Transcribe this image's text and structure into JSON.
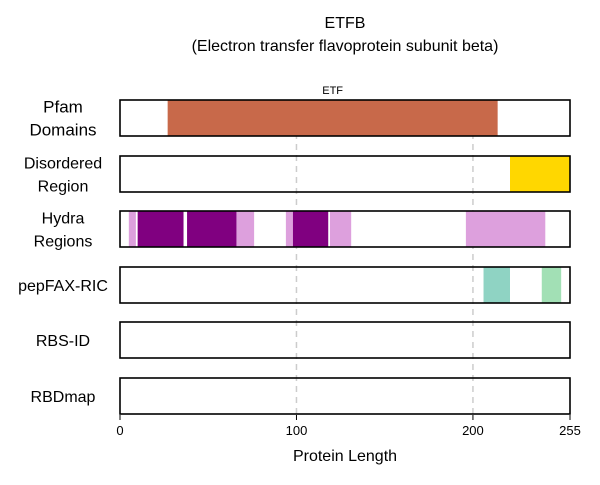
{
  "chart_data": {
    "type": "bar",
    "title": "ETFB",
    "subtitle": "(Electron transfer flavoprotein subunit beta)",
    "xlabel": "Protein Length",
    "xlim": [
      0,
      255
    ],
    "xticks": [
      0,
      100,
      200,
      255
    ],
    "grid_lines_at": [
      100,
      200
    ],
    "tracks": [
      {
        "label_lines": [
          "Pfam",
          "Domains"
        ],
        "segments": [
          {
            "start": 27,
            "end": 214,
            "color": "#c8694a",
            "label": "ETF"
          }
        ]
      },
      {
        "label_lines": [
          "Disordered",
          "Region"
        ],
        "segments": [
          {
            "start": 221,
            "end": 255,
            "color": "#ffd700"
          }
        ]
      },
      {
        "label_lines": [
          "Hydra",
          "Regions"
        ],
        "segments": [
          {
            "start": 5,
            "end": 9,
            "color": "#dda0dd"
          },
          {
            "start": 10,
            "end": 36,
            "color": "#800080"
          },
          {
            "start": 38,
            "end": 66,
            "color": "#800080"
          },
          {
            "start": 66,
            "end": 76,
            "color": "#dda0dd"
          },
          {
            "start": 94,
            "end": 98,
            "color": "#dda0dd"
          },
          {
            "start": 98,
            "end": 118,
            "color": "#800080"
          },
          {
            "start": 119,
            "end": 131,
            "color": "#dda0dd"
          },
          {
            "start": 196,
            "end": 241,
            "color": "#dda0dd"
          }
        ]
      },
      {
        "label_lines": [
          "pepFAX-RIC"
        ],
        "segments": [
          {
            "start": 206,
            "end": 221,
            "color": "#8fd3c3"
          },
          {
            "start": 239,
            "end": 250,
            "color": "#a2e0b5"
          }
        ]
      },
      {
        "label_lines": [
          "RBS-ID"
        ],
        "segments": []
      },
      {
        "label_lines": [
          "RBDmap"
        ],
        "segments": []
      }
    ]
  }
}
